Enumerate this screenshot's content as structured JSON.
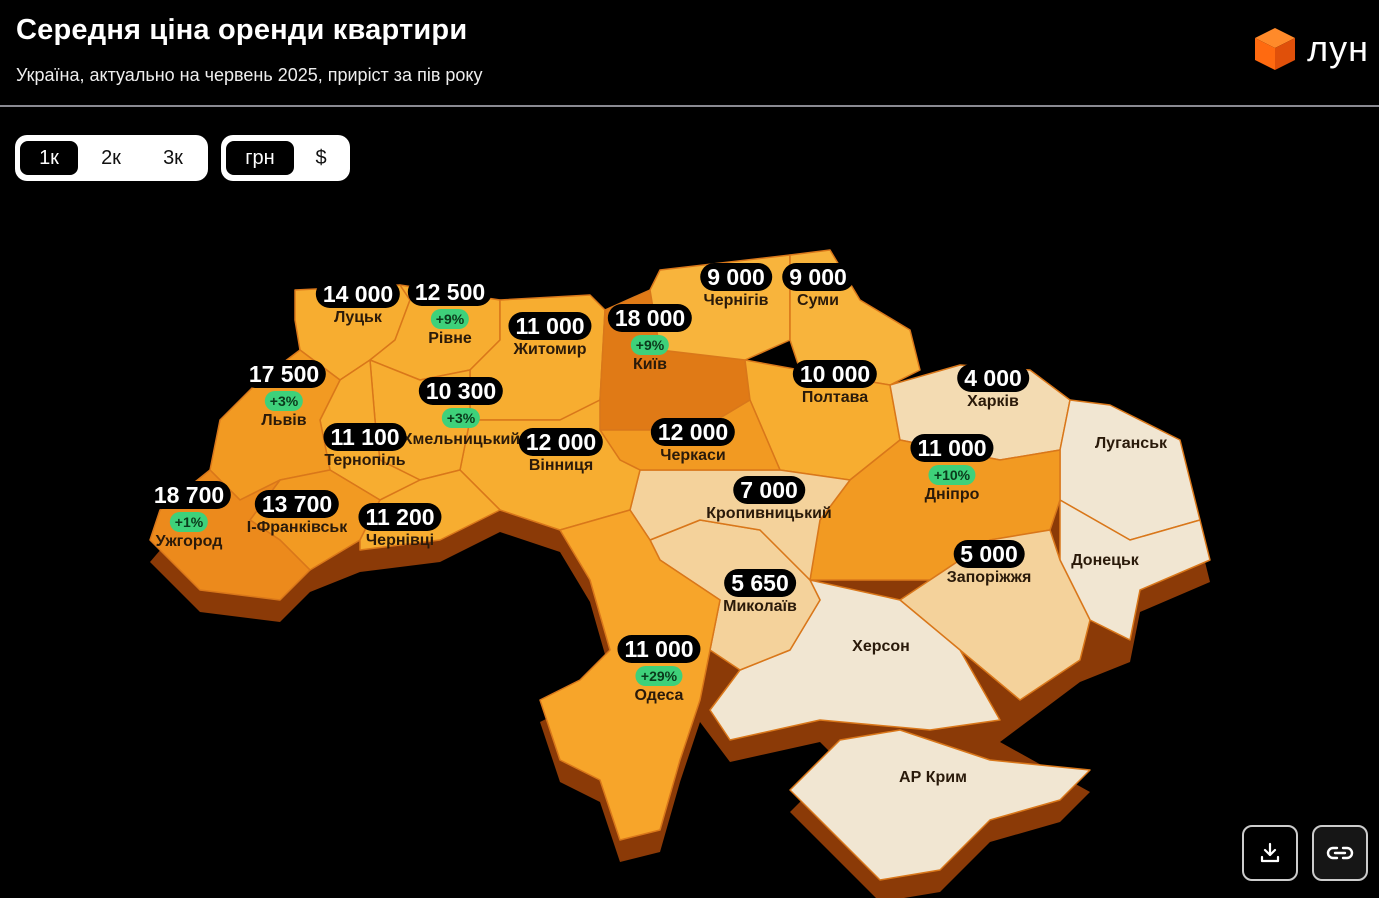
{
  "header": {
    "title": "Середня ціна оренди квартири",
    "subtitle": "Україна, актуально на червень 2025, приріст за пів року",
    "logo_text": "лун"
  },
  "rooms_toggle": {
    "options": [
      "1к",
      "2к",
      "3к"
    ],
    "selected": "1к"
  },
  "currency_toggle": {
    "options": [
      "грн",
      "$"
    ],
    "selected": "грн"
  },
  "actions": {
    "download": "download-icon",
    "share_link": "link-icon"
  },
  "colors": {
    "highest": "#e07a16",
    "high": "#f29a22",
    "mid": "#f7ad30",
    "low": "#f4d29b",
    "lowest": "#f1e6d2",
    "growth_badge": "#3ed17a"
  },
  "regions": {
    "lutsk": {
      "city": "Луцьк",
      "price": "14 000"
    },
    "rivne": {
      "city": "Рівне",
      "price": "12 500",
      "change": "+9%"
    },
    "zhytomyr": {
      "city": "Житомир",
      "price": "11 000"
    },
    "kyiv": {
      "city": "Київ",
      "price": "18 000",
      "change": "+9%"
    },
    "chernihiv": {
      "city": "Чернігів",
      "price": "9 000"
    },
    "sumy": {
      "city": "Суми",
      "price": "9 000"
    },
    "lviv": {
      "city": "Львів",
      "price": "17 500",
      "change": "+3%"
    },
    "khmelnytskyi": {
      "city": "Хмельницький",
      "price": "10 300",
      "change": "+3%"
    },
    "ternopil": {
      "city": "Тернопіль",
      "price": "11 100"
    },
    "vinnytsia": {
      "city": "Вінниця",
      "price": "12 000"
    },
    "cherkasy": {
      "city": "Черкаси",
      "price": "12 000"
    },
    "poltava": {
      "city": "Полтава",
      "price": "10 000"
    },
    "kharkiv": {
      "city": "Харків",
      "price": "4 000"
    },
    "dnipro": {
      "city": "Дніпро",
      "price": "11 000",
      "change": "+10%"
    },
    "luhansk": {
      "city": "Луганськ"
    },
    "uzhhorod": {
      "city": "Ужгород",
      "price": "18 700",
      "change": "+1%"
    },
    "ivano_frankivsk": {
      "city": "І-Франківськ",
      "price": "13 700"
    },
    "chernivtsi": {
      "city": "Чернівці",
      "price": "11 200"
    },
    "kropyvnytskyi": {
      "city": "Кропивницький",
      "price": "7 000"
    },
    "zaporizhzhia": {
      "city": "Запоріжжя",
      "price": "5 000"
    },
    "donetsk": {
      "city": "Донецьк"
    },
    "mykolaiv": {
      "city": "Миколаїв",
      "price": "5 650"
    },
    "kherson": {
      "city": "Херсон"
    },
    "odesa": {
      "city": "Одеса",
      "price": "11 000",
      "change": "+29%"
    },
    "crimea": {
      "city": "АР Крим"
    }
  }
}
